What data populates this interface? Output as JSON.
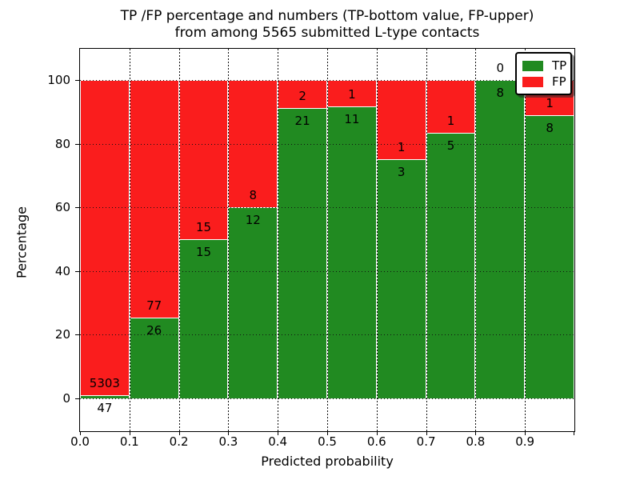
{
  "figure": {
    "title_line1": "TP /FP percentage and numbers (TP-bottom value, FP-upper)",
    "title_line2": "from among 5565 submitted L-type contacts"
  },
  "chart_data": {
    "type": "bar",
    "stacked": true,
    "orientation": "vertical",
    "title": "TP /FP percentage and numbers (TP-bottom value, FP-upper) from among 5565 submitted L-type contacts",
    "xlabel": "Predicted probability",
    "ylabel": "Percentage",
    "total_submitted": 5565,
    "categories": [
      "0.0-0.1",
      "0.1-0.2",
      "0.2-0.3",
      "0.3-0.4",
      "0.4-0.5",
      "0.5-0.6",
      "0.6-0.7",
      "0.7-0.8",
      "0.8-0.9",
      "0.9-1.0"
    ],
    "x_tick_labels": [
      "0.0",
      "0.1",
      "0.2",
      "0.3",
      "0.4",
      "0.5",
      "0.6",
      "0.7",
      "0.8",
      "0.9"
    ],
    "y_ticks": [
      0,
      20,
      40,
      60,
      80,
      100
    ],
    "y_tick_labels": [
      "0",
      "20",
      "40",
      "60",
      "80",
      "100"
    ],
    "xlim": [
      0.0,
      1.0
    ],
    "ylim": [
      -10.4,
      109.8
    ],
    "grid": true,
    "bar_edge_color": "#ffffff",
    "series": [
      {
        "name": "TP",
        "color": "#218a21",
        "counts": [
          47,
          26,
          15,
          12,
          21,
          11,
          3,
          5,
          8,
          8
        ]
      },
      {
        "name": "FP",
        "color": "#fa1d1d",
        "counts": [
          5303,
          77,
          15,
          8,
          2,
          1,
          1,
          1,
          0,
          1
        ]
      }
    ],
    "percent_tp": [
      0.88,
      25.24,
      50.0,
      60.0,
      91.3,
      91.67,
      75.0,
      83.33,
      100.0,
      88.89
    ],
    "legend": {
      "position": "upper right",
      "entries": [
        {
          "label": "TP",
          "color": "#218a21"
        },
        {
          "label": "FP",
          "color": "#fa1d1d"
        }
      ]
    }
  }
}
